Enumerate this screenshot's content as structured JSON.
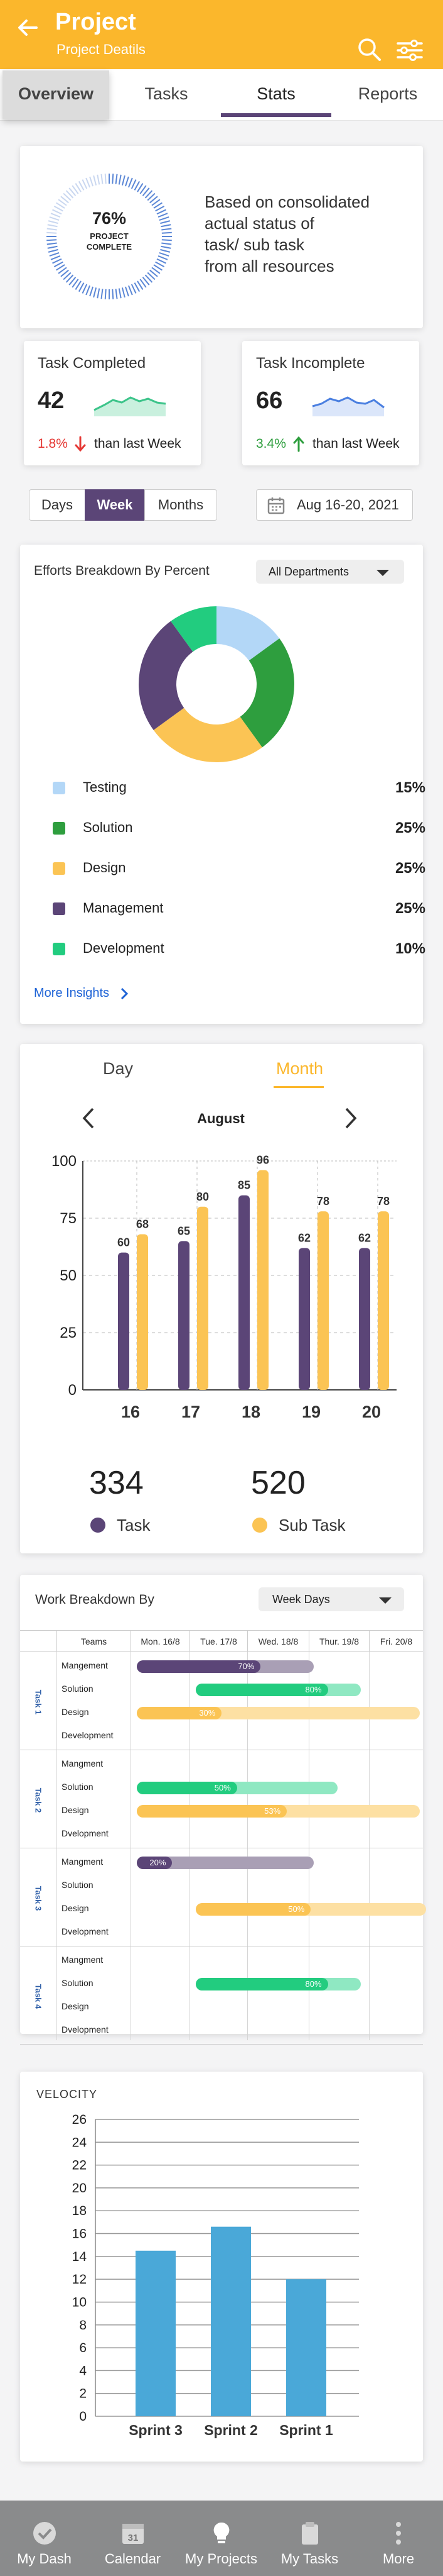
{
  "header": {
    "title": "Project",
    "subtitle": "Project Deatils"
  },
  "tabs": [
    {
      "label": "Overview",
      "state": "pressed"
    },
    {
      "label": "Tasks"
    },
    {
      "label": "Stats",
      "state": "active"
    },
    {
      "label": "Reports"
    }
  ],
  "completion": {
    "percent": "76%",
    "label_line1": "PROJECT",
    "label_line2": "COMPLETE",
    "fraction": 0.76,
    "description": [
      "Based on consolidated",
      "actual status of",
      "task/ sub task",
      "from all resources"
    ]
  },
  "task_completed": {
    "title": "Task Completed",
    "value": "42",
    "change": "1.8%",
    "change_note": "than last Week",
    "direction": "down",
    "color": "#3cc48a"
  },
  "task_incomplete": {
    "title": "Task Incomplete",
    "value": "66",
    "change": "3.4%",
    "change_note": "than last Week",
    "direction": "up",
    "color": "#4a7fe0"
  },
  "period": {
    "options": [
      "Days",
      "Week",
      "Months"
    ],
    "selected": "Week",
    "date_range": "Aug 16-20, 2021"
  },
  "efforts": {
    "title": "Efforts Breakdown By Percent",
    "filter": "All Departments",
    "items": [
      {
        "label": "Testing",
        "value": "15%",
        "color": "#b3d7f7"
      },
      {
        "label": "Solution",
        "value": "25%",
        "color": "#2e9e3e"
      },
      {
        "label": "Design",
        "value": "25%",
        "color": "#fbc454"
      },
      {
        "label": "Management",
        "value": "25%",
        "color": "#5b4577"
      },
      {
        "label": "Development",
        "value": "10%",
        "color": "#22cc7f"
      }
    ],
    "more_link": "More Insights"
  },
  "task_chart": {
    "toggle": {
      "day": "Day",
      "month": "Month",
      "selected": "Month"
    },
    "month": "August"
  },
  "totals": [
    {
      "value": "334",
      "label": "Task",
      "color": "#5b4577"
    },
    {
      "value": "520",
      "label": "Sub Task",
      "color": "#fbc454"
    }
  ],
  "work_breakdown": {
    "title": "Work Breakdown By",
    "filter": "Week Days",
    "columns": [
      "Teams",
      "Mon. 16/8",
      "Tue. 17/8",
      "Wed. 18/8",
      "Thur. 19/8",
      "Fri. 20/8"
    ],
    "tasks": [
      {
        "name": "Task 1",
        "rows": [
          "Mangement",
          "Solution",
          "Design",
          "Development"
        ]
      },
      {
        "name": "Task 2",
        "rows": [
          "Mangment",
          "Solution",
          "Design",
          "Dvelopment"
        ]
      },
      {
        "name": "Task 3",
        "rows": [
          "Mangment",
          "Solution",
          "Design",
          "Dvelopment"
        ]
      },
      {
        "name": "Task 4",
        "rows": [
          "Mangment",
          "Solution",
          "Design",
          "Dvelopment"
        ]
      }
    ],
    "bars": [
      {
        "task": 0,
        "row": 0,
        "start": 0,
        "end": 3,
        "progress": 0.7,
        "label": "70%",
        "color": "#5b4577",
        "track": "#a99fb5"
      },
      {
        "task": 0,
        "row": 1,
        "start": 1,
        "end": 3.8,
        "progress": 0.8,
        "label": "80%",
        "color": "#22cc7f",
        "track": "#8fe8c2"
      },
      {
        "task": 0,
        "row": 2,
        "start": 0,
        "end": 4.8,
        "progress": 0.3,
        "label": "30%",
        "color": "#fbc454",
        "track": "#fde0a3"
      },
      {
        "task": 1,
        "row": 0,
        "start": 0,
        "end": 0,
        "progress": 0,
        "label": "",
        "color": "#5b4577",
        "track": "#a99fb5"
      },
      {
        "task": 1,
        "row": 1,
        "start": 0,
        "end": 3.4,
        "progress": 0.5,
        "label": "50%",
        "color": "#22cc7f",
        "track": "#8fe8c2"
      },
      {
        "task": 1,
        "row": 2,
        "start": 0,
        "end": 4.8,
        "progress": 0.53,
        "label": "53%",
        "color": "#fbc454",
        "track": "#fde0a3"
      },
      {
        "task": 2,
        "row": 0,
        "start": 0,
        "end": 3,
        "progress": 0.2,
        "label": "20%",
        "color": "#5b4577",
        "track": "#a99fb5"
      },
      {
        "task": 2,
        "row": 2,
        "start": 1,
        "end": 4.9,
        "progress": 0.5,
        "label": "50%",
        "color": "#fbc454",
        "track": "#fde0a3"
      },
      {
        "task": 3,
        "row": 1,
        "start": 1,
        "end": 3.8,
        "progress": 0.8,
        "label": "80%",
        "color": "#22cc7f",
        "track": "#8fe8c2"
      }
    ]
  },
  "velocity": {
    "title": "VELOCITY"
  },
  "bottom_nav": [
    {
      "label": "My Dash",
      "icon": "check-circle-icon"
    },
    {
      "label": "Calendar",
      "icon": "calendar-icon",
      "badge": "31"
    },
    {
      "label": "My Projects",
      "icon": "lightbulb-icon"
    },
    {
      "label": "My Tasks",
      "icon": "clipboard-icon"
    },
    {
      "label": "More",
      "icon": "more-vertical-icon"
    }
  ],
  "chart_data": [
    {
      "type": "bar",
      "categories": [
        "16",
        "17",
        "18",
        "19",
        "20"
      ],
      "series": [
        {
          "name": "Task",
          "values": [
            60,
            65,
            85,
            62,
            62
          ],
          "color": "#5b4577"
        },
        {
          "name": "Sub Task",
          "values": [
            68,
            80,
            96,
            78,
            78
          ],
          "color": "#fbc454"
        }
      ],
      "ylim": [
        0,
        100
      ],
      "yticks": [
        0,
        25,
        50,
        75,
        100
      ],
      "grid": "dashed"
    },
    {
      "type": "bar",
      "title": "VELOCITY",
      "categories": [
        "Sprint 3",
        "Sprint 2",
        "Sprint 1"
      ],
      "values": [
        14.5,
        16.6,
        12.0
      ],
      "color": "#4aa8d8",
      "ylim": [
        0,
        26
      ],
      "yticks": [
        0,
        2,
        4,
        6,
        8,
        10,
        12,
        14,
        16,
        18,
        20,
        22,
        24,
        26
      ],
      "grid": "solid"
    },
    {
      "type": "pie",
      "labels": [
        "Testing",
        "Solution",
        "Design",
        "Management",
        "Development"
      ],
      "values": [
        15,
        25,
        25,
        25,
        10
      ],
      "colors": [
        "#b3d7f7",
        "#2e9e3e",
        "#fbc454",
        "#5b4577",
        "#22cc7f"
      ]
    }
  ]
}
